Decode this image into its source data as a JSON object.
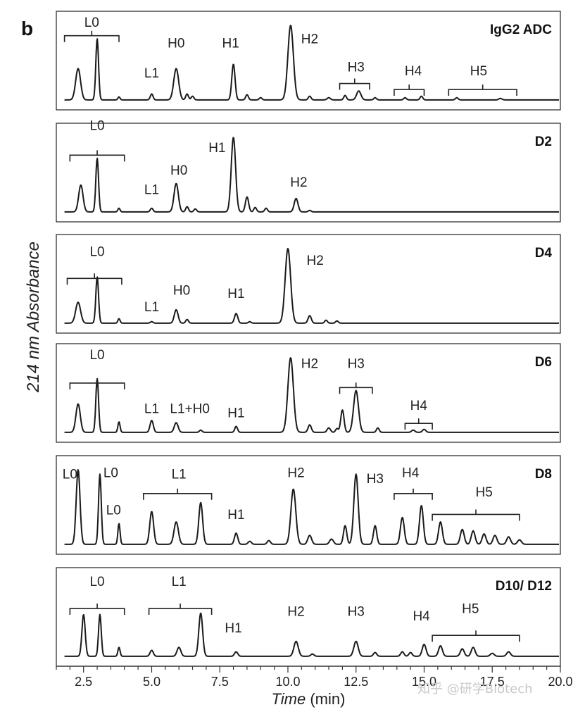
{
  "figure_letter": "b",
  "ylabel": "214 nm Absorbance",
  "xlabel_italic": "Time",
  "xlabel_unit": " (min)",
  "watermark": "知乎 @研学Biotech",
  "chart_data": {
    "type": "line",
    "xlim": [
      1.5,
      20.0
    ],
    "x_ticks": [
      2.5,
      5.0,
      7.5,
      10.0,
      12.5,
      15.0,
      17.5,
      20.0
    ],
    "x_tick_labels": [
      "2.5",
      "5.0",
      "7.5",
      "10.0",
      "12.5",
      "15.0",
      "17.5",
      "20.0"
    ],
    "panels": [
      {
        "title": "IgG2 ADC",
        "baseline": 0.02,
        "peaks": [
          [
            2.3,
            0.42,
            0.09
          ],
          [
            3.0,
            0.82,
            0.05
          ],
          [
            3.8,
            0.04,
            0.04
          ],
          [
            5.0,
            0.08,
            0.05
          ],
          [
            5.9,
            0.42,
            0.09
          ],
          [
            6.3,
            0.08,
            0.05
          ],
          [
            6.5,
            0.05,
            0.05
          ],
          [
            8.0,
            0.48,
            0.06
          ],
          [
            8.5,
            0.07,
            0.05
          ],
          [
            9.0,
            0.03,
            0.05
          ],
          [
            10.1,
            1.0,
            0.1
          ],
          [
            10.8,
            0.05,
            0.05
          ],
          [
            11.5,
            0.03,
            0.06
          ],
          [
            12.1,
            0.06,
            0.05
          ],
          [
            12.6,
            0.12,
            0.08
          ],
          [
            13.2,
            0.03,
            0.05
          ],
          [
            14.3,
            0.03,
            0.05
          ],
          [
            14.9,
            0.05,
            0.05
          ],
          [
            16.2,
            0.03,
            0.05
          ],
          [
            17.8,
            0.02,
            0.06
          ]
        ],
        "labels": [
          {
            "text": "L0",
            "x": 2.8,
            "y": 1.0
          },
          {
            "text": "H0",
            "x": 5.9,
            "y": 0.72
          },
          {
            "text": "L1",
            "x": 5.0,
            "y": 0.32
          },
          {
            "text": "H1",
            "x": 7.9,
            "y": 0.72
          },
          {
            "text": "H2",
            "x": 10.8,
            "y": 0.78
          },
          {
            "text": "H3",
            "x": 12.5,
            "y": 0.4
          },
          {
            "text": "H4",
            "x": 14.6,
            "y": 0.35
          },
          {
            "text": "H5",
            "x": 17.0,
            "y": 0.35
          }
        ],
        "brackets": [
          {
            "x1": 1.8,
            "x2": 3.8,
            "y": 0.88
          },
          {
            "x1": 11.9,
            "x2": 13.0,
            "y": 0.24
          },
          {
            "x1": 13.9,
            "x2": 15.0,
            "y": 0.16
          },
          {
            "x1": 15.9,
            "x2": 18.4,
            "y": 0.16
          }
        ]
      },
      {
        "title": "D2",
        "baseline": 0.02,
        "peaks": [
          [
            2.4,
            0.36,
            0.08
          ],
          [
            3.0,
            0.72,
            0.05
          ],
          [
            3.8,
            0.05,
            0.04
          ],
          [
            5.0,
            0.05,
            0.05
          ],
          [
            5.9,
            0.38,
            0.08
          ],
          [
            6.3,
            0.07,
            0.05
          ],
          [
            6.6,
            0.04,
            0.05
          ],
          [
            8.0,
            1.0,
            0.08
          ],
          [
            8.5,
            0.2,
            0.06
          ],
          [
            8.8,
            0.06,
            0.05
          ],
          [
            9.2,
            0.05,
            0.05
          ],
          [
            10.3,
            0.18,
            0.07
          ],
          [
            10.8,
            0.02,
            0.05
          ]
        ],
        "labels": [
          {
            "text": "L0",
            "x": 3.0,
            "y": 1.12
          },
          {
            "text": "L1",
            "x": 5.0,
            "y": 0.26
          },
          {
            "text": "H0",
            "x": 6.0,
            "y": 0.52
          },
          {
            "text": "H1",
            "x": 7.4,
            "y": 0.82
          },
          {
            "text": "H2",
            "x": 10.4,
            "y": 0.36
          }
        ],
        "brackets": [
          {
            "x1": 2.0,
            "x2": 4.0,
            "y": 0.78
          }
        ]
      },
      {
        "title": "D4",
        "baseline": 0.02,
        "peaks": [
          [
            2.3,
            0.28,
            0.09
          ],
          [
            3.0,
            0.62,
            0.05
          ],
          [
            3.8,
            0.06,
            0.04
          ],
          [
            5.0,
            0.02,
            0.05
          ],
          [
            5.9,
            0.18,
            0.07
          ],
          [
            6.3,
            0.05,
            0.05
          ],
          [
            8.1,
            0.13,
            0.06
          ],
          [
            8.6,
            0.02,
            0.05
          ],
          [
            10.0,
            1.0,
            0.1
          ],
          [
            10.8,
            0.1,
            0.06
          ],
          [
            11.4,
            0.04,
            0.05
          ],
          [
            11.8,
            0.03,
            0.05
          ]
        ],
        "labels": [
          {
            "text": "L0",
            "x": 3.0,
            "y": 0.92
          },
          {
            "text": "L1",
            "x": 5.0,
            "y": 0.18
          },
          {
            "text": "H0",
            "x": 6.1,
            "y": 0.4
          },
          {
            "text": "H1",
            "x": 8.1,
            "y": 0.36
          },
          {
            "text": "H2",
            "x": 11.0,
            "y": 0.8
          }
        ],
        "brackets": [
          {
            "x1": 1.9,
            "x2": 3.9,
            "y": 0.62
          }
        ]
      },
      {
        "title": "D6",
        "baseline": 0.02,
        "peaks": [
          [
            2.3,
            0.38,
            0.08
          ],
          [
            3.0,
            0.72,
            0.05
          ],
          [
            3.8,
            0.14,
            0.04
          ],
          [
            5.0,
            0.16,
            0.06
          ],
          [
            5.9,
            0.13,
            0.07
          ],
          [
            6.8,
            0.03,
            0.05
          ],
          [
            8.1,
            0.08,
            0.05
          ],
          [
            10.1,
            1.0,
            0.1
          ],
          [
            10.8,
            0.1,
            0.06
          ],
          [
            11.5,
            0.06,
            0.06
          ],
          [
            11.8,
            0.05,
            0.05
          ],
          [
            12.0,
            0.3,
            0.06
          ],
          [
            12.5,
            0.56,
            0.09
          ],
          [
            13.3,
            0.06,
            0.05
          ],
          [
            14.6,
            0.03,
            0.06
          ],
          [
            15.0,
            0.04,
            0.06
          ]
        ],
        "labels": [
          {
            "text": "L0",
            "x": 3.0,
            "y": 1.0
          },
          {
            "text": "L1",
            "x": 5.0,
            "y": 0.28
          },
          {
            "text": "L1+H0",
            "x": 6.4,
            "y": 0.28
          },
          {
            "text": "H1",
            "x": 8.1,
            "y": 0.22
          },
          {
            "text": "H2",
            "x": 10.8,
            "y": 0.88
          },
          {
            "text": "H3",
            "x": 12.5,
            "y": 0.88
          },
          {
            "text": "H4",
            "x": 14.8,
            "y": 0.32
          }
        ],
        "brackets": [
          {
            "x1": 2.0,
            "x2": 4.0,
            "y": 0.68
          },
          {
            "x1": 11.9,
            "x2": 13.1,
            "y": 0.62
          },
          {
            "x1": 14.3,
            "x2": 15.3,
            "y": 0.14
          }
        ]
      },
      {
        "title": "D8",
        "baseline": 0.02,
        "peaks": [
          [
            2.3,
            1.0,
            0.07
          ],
          [
            3.1,
            0.94,
            0.05
          ],
          [
            3.8,
            0.28,
            0.04
          ],
          [
            5.0,
            0.44,
            0.07
          ],
          [
            5.9,
            0.3,
            0.08
          ],
          [
            6.8,
            0.56,
            0.07
          ],
          [
            8.1,
            0.15,
            0.06
          ],
          [
            8.6,
            0.04,
            0.06
          ],
          [
            9.3,
            0.05,
            0.06
          ],
          [
            10.2,
            0.74,
            0.09
          ],
          [
            10.8,
            0.12,
            0.07
          ],
          [
            11.6,
            0.07,
            0.07
          ],
          [
            12.1,
            0.25,
            0.06
          ],
          [
            12.5,
            0.94,
            0.08
          ],
          [
            13.2,
            0.25,
            0.06
          ],
          [
            14.2,
            0.36,
            0.07
          ],
          [
            14.9,
            0.52,
            0.07
          ],
          [
            15.6,
            0.3,
            0.07
          ],
          [
            16.4,
            0.2,
            0.07
          ],
          [
            16.8,
            0.18,
            0.07
          ],
          [
            17.2,
            0.14,
            0.07
          ],
          [
            17.6,
            0.12,
            0.07
          ],
          [
            18.1,
            0.1,
            0.07
          ],
          [
            18.5,
            0.06,
            0.07
          ]
        ],
        "labels": [
          {
            "text": "L0",
            "x": 2.0,
            "y": 0.9
          },
          {
            "text": "L0",
            "x": 3.5,
            "y": 0.92
          },
          {
            "text": "L0",
            "x": 3.6,
            "y": 0.42
          },
          {
            "text": "L1",
            "x": 6.0,
            "y": 0.9
          },
          {
            "text": "H1",
            "x": 8.1,
            "y": 0.36
          },
          {
            "text": "H2",
            "x": 10.3,
            "y": 0.92
          },
          {
            "text": "H3",
            "x": 13.2,
            "y": 0.84
          },
          {
            "text": "H4",
            "x": 14.5,
            "y": 0.92
          },
          {
            "text": "H5",
            "x": 17.2,
            "y": 0.66
          }
        ],
        "brackets": [
          {
            "x1": 4.7,
            "x2": 7.2,
            "y": 0.7
          },
          {
            "x1": 13.9,
            "x2": 15.3,
            "y": 0.7
          },
          {
            "x1": 15.3,
            "x2": 18.5,
            "y": 0.42
          }
        ]
      },
      {
        "title": "D10/ D12",
        "baseline": 0.02,
        "peaks": [
          [
            2.5,
            0.56,
            0.06
          ],
          [
            3.1,
            0.56,
            0.05
          ],
          [
            3.8,
            0.12,
            0.04
          ],
          [
            5.0,
            0.08,
            0.06
          ],
          [
            6.0,
            0.12,
            0.07
          ],
          [
            6.8,
            0.58,
            0.07
          ],
          [
            8.1,
            0.06,
            0.06
          ],
          [
            10.3,
            0.2,
            0.08
          ],
          [
            10.9,
            0.03,
            0.06
          ],
          [
            12.5,
            0.2,
            0.08
          ],
          [
            13.2,
            0.05,
            0.06
          ],
          [
            14.2,
            0.06,
            0.06
          ],
          [
            14.5,
            0.05,
            0.06
          ],
          [
            15.0,
            0.16,
            0.07
          ],
          [
            15.6,
            0.14,
            0.07
          ],
          [
            16.4,
            0.1,
            0.07
          ],
          [
            16.8,
            0.12,
            0.07
          ],
          [
            17.5,
            0.04,
            0.07
          ],
          [
            18.1,
            0.06,
            0.07
          ]
        ],
        "labels": [
          {
            "text": "L0",
            "x": 3.0,
            "y": 0.96
          },
          {
            "text": "L1",
            "x": 6.0,
            "y": 0.96
          },
          {
            "text": "H1",
            "x": 8.0,
            "y": 0.34
          },
          {
            "text": "H2",
            "x": 10.3,
            "y": 0.56
          },
          {
            "text": "H3",
            "x": 12.5,
            "y": 0.56
          },
          {
            "text": "H4",
            "x": 14.9,
            "y": 0.5
          },
          {
            "text": "H5",
            "x": 16.7,
            "y": 0.6
          }
        ],
        "brackets": [
          {
            "x1": 2.0,
            "x2": 4.0,
            "y": 0.66
          },
          {
            "x1": 4.9,
            "x2": 7.2,
            "y": 0.66
          },
          {
            "x1": 15.3,
            "x2": 18.5,
            "y": 0.3
          }
        ]
      }
    ]
  }
}
